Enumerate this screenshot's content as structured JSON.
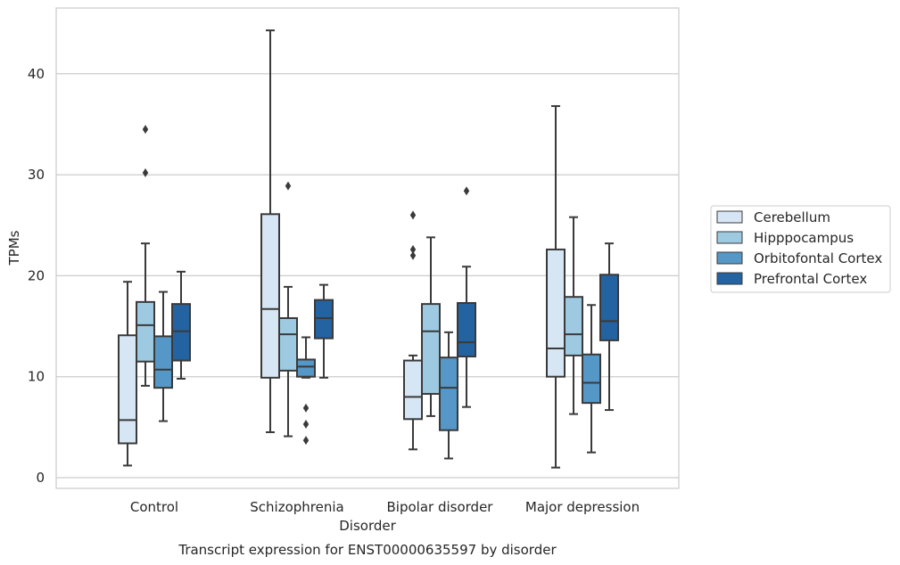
{
  "chart_data": {
    "type": "box",
    "title": "Transcript expression for ENST00000635597 by disorder",
    "xlabel": "Disorder",
    "ylabel": "TPMs",
    "ylim": [
      -1,
      45.5
    ],
    "yticks": [
      0,
      10,
      20,
      30,
      40
    ],
    "grid": true,
    "legend_position": "right",
    "categories": [
      "Control",
      "Schizophrenia",
      "Bipolar disorder",
      "Major depression"
    ],
    "series": [
      {
        "name": "Cerebellum",
        "color": "#d6e6f4",
        "boxes": [
          {
            "whislo": 1.2,
            "q1": 3.4,
            "med": 5.7,
            "q3": 14.1,
            "whishi": 19.4,
            "fliers": []
          },
          {
            "whislo": 4.5,
            "q1": 9.9,
            "med": 16.7,
            "q3": 26.1,
            "whishi": 44.3,
            "fliers": []
          },
          {
            "whislo": 2.8,
            "q1": 5.8,
            "med": 8.0,
            "q3": 11.6,
            "whishi": 12.1,
            "fliers": [
              26.0,
              22.6,
              22.0
            ]
          },
          {
            "whislo": 1.0,
            "q1": 10.0,
            "med": 12.8,
            "q3": 22.6,
            "whishi": 36.8,
            "fliers": []
          }
        ]
      },
      {
        "name": "Hipppocampus",
        "color": "#9ecae1",
        "boxes": [
          {
            "whislo": 9.1,
            "q1": 11.5,
            "med": 15.1,
            "q3": 17.4,
            "whishi": 23.2,
            "fliers": [
              34.5,
              30.2
            ]
          },
          {
            "whislo": 4.1,
            "q1": 10.6,
            "med": 14.2,
            "q3": 15.8,
            "whishi": 18.9,
            "fliers": [
              28.9
            ]
          },
          {
            "whislo": 6.1,
            "q1": 8.3,
            "med": 14.5,
            "q3": 17.2,
            "whishi": 23.8,
            "fliers": []
          },
          {
            "whislo": 6.3,
            "q1": 12.1,
            "med": 14.2,
            "q3": 17.9,
            "whishi": 25.8,
            "fliers": []
          }
        ]
      },
      {
        "name": "Orbitofontal Cortex",
        "color": "#5597c6",
        "boxes": [
          {
            "whislo": 5.6,
            "q1": 8.9,
            "med": 10.7,
            "q3": 14.0,
            "whishi": 18.4,
            "fliers": []
          },
          {
            "whislo": 9.9,
            "q1": 10.0,
            "med": 11.0,
            "q3": 11.7,
            "whishi": 13.9,
            "fliers": [
              6.9,
              5.3,
              3.7
            ]
          },
          {
            "whislo": 1.9,
            "q1": 4.7,
            "med": 8.9,
            "q3": 11.9,
            "whishi": 14.4,
            "fliers": []
          },
          {
            "whislo": 2.5,
            "q1": 7.4,
            "med": 9.4,
            "q3": 12.2,
            "whishi": 17.1,
            "fliers": []
          }
        ]
      },
      {
        "name": "Prefrontal Cortex",
        "color": "#2363a2",
        "boxes": [
          {
            "whislo": 9.8,
            "q1": 11.6,
            "med": 14.5,
            "q3": 17.2,
            "whishi": 20.4,
            "fliers": []
          },
          {
            "whislo": 9.9,
            "q1": 13.8,
            "med": 15.8,
            "q3": 17.6,
            "whishi": 19.1,
            "fliers": []
          },
          {
            "whislo": 7.0,
            "q1": 12.0,
            "med": 13.4,
            "q3": 17.3,
            "whishi": 20.9,
            "fliers": [
              28.4
            ]
          },
          {
            "whislo": 6.7,
            "q1": 13.6,
            "med": 15.5,
            "q3": 20.1,
            "whishi": 23.2,
            "fliers": []
          }
        ]
      }
    ]
  }
}
